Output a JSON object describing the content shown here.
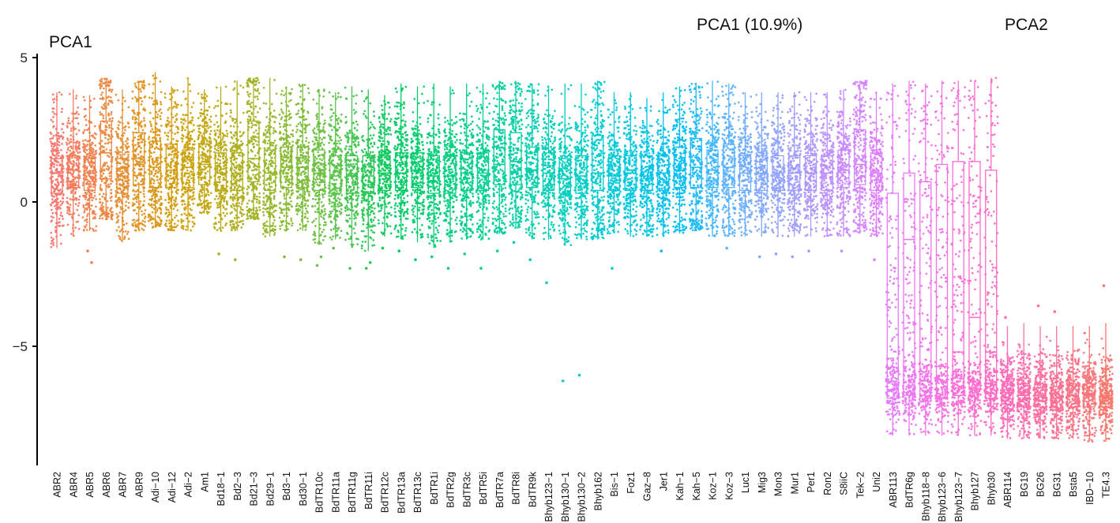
{
  "chart_data": {
    "type": "box",
    "title": "PCA1 (10.9%)",
    "ylabel": "PCA1",
    "secondary_label": "PCA2",
    "ylim": [
      -8.8,
      5.2
    ],
    "yticks": [
      5,
      0,
      -5
    ],
    "ytick_labels": [
      "5",
      "0",
      "−5"
    ],
    "grid": false,
    "legend": "none",
    "categories": [
      "ABR2",
      "ABR4",
      "ABR5",
      "ABR6",
      "ABR7",
      "ABR9",
      "Adi−10",
      "Adi−12",
      "Adi−2",
      "Am1",
      "Bd18−1",
      "Bd2−3",
      "Bd21−3",
      "Bd29−1",
      "Bd3−1",
      "Bd30−1",
      "BdTR10c",
      "BdTR11a",
      "BdTR11g",
      "BdTR11i",
      "BdTR12c",
      "BdTR13a",
      "BdTR13c",
      "BdTR1i",
      "BdTR2g",
      "BdTR3c",
      "BdTR5i",
      "BdTR7a",
      "BdTR8i",
      "BdTR9k",
      "Bhyb123−1",
      "Bhyb130−1",
      "Bhyb130−2",
      "Bhyb162",
      "Bis−1",
      "Foz1",
      "Gaz−8",
      "Jer1",
      "Kah−1",
      "Kah−5",
      "Koz−1",
      "Koz−3",
      "Luc1",
      "Mig3",
      "Mon3",
      "Mur1",
      "Per1",
      "Ron2",
      "S8iiC",
      "Tek−2",
      "Uni2",
      "ABR113",
      "BdTR6g",
      "Bhyb118−8",
      "Bhyb123−6",
      "Bhyb123−7",
      "Bhyb127",
      "Bhyb30",
      "ABR114",
      "BG19",
      "BG26",
      "BG31",
      "Bsta5",
      "IBD−10",
      "TE4.3"
    ],
    "colors": [
      "#F8766D",
      "#F47C5E",
      "#F08250",
      "#EB8841",
      "#E68E33",
      "#E09325",
      "#DA9818",
      "#D39D0E",
      "#CBA20B",
      "#C2A60E",
      "#B9AB15",
      "#AFAF1D",
      "#A4B325",
      "#98B72D",
      "#8BBA34",
      "#7DBD3B",
      "#6DC042",
      "#5BC349",
      "#44C550",
      "#28C757",
      "#0DC95E",
      "#00CA66",
      "#00CC6E",
      "#00CD77",
      "#00CE80",
      "#00CE89",
      "#00CF92",
      "#00CF9B",
      "#00CFA4",
      "#00CFAD",
      "#00CEB6",
      "#00CDBF",
      "#00CCC7",
      "#00CBCF",
      "#00C9D7",
      "#00C7DE",
      "#00C4E6",
      "#00C1EC",
      "#00BEF2",
      "#1FBAF8",
      "#42B6FD",
      "#5BB2FF",
      "#70ADFF",
      "#82A8FF",
      "#92A3FF",
      "#A19DFF",
      "#AF97FF",
      "#BC91FF",
      "#C88AFF",
      "#D384FF",
      "#DD7EFF",
      "#E57AFA",
      "#EC76F3",
      "#F272EB",
      "#F670E2",
      "#FA6ED8",
      "#FC6DCE",
      "#FE6CC3",
      "#FE6CB8",
      "#FE6DAC",
      "#FE6EA0",
      "#FC7094",
      "#FA7387",
      "#F9767B",
      "#F8766D"
    ],
    "series": [
      {
        "name": "median",
        "values": [
          1.0,
          1.1,
          1.0,
          1.7,
          0.9,
          1.3,
          1.2,
          1.1,
          1.2,
          1.3,
          1.0,
          1.0,
          1.5,
          1.0,
          1.2,
          1.2,
          1.0,
          0.9,
          0.9,
          0.9,
          1.0,
          1.0,
          1.1,
          0.9,
          0.9,
          1.0,
          1.0,
          1.3,
          1.4,
          1.1,
          1.0,
          0.8,
          0.9,
          1.0,
          0.9,
          1.0,
          0.9,
          1.0,
          1.1,
          1.2,
          1.1,
          1.2,
          1.0,
          1.0,
          1.0,
          1.0,
          1.0,
          1.0,
          1.1,
          1.3,
          1.0,
          -6.5,
          -1.3,
          -6.2,
          -5.7,
          -5.2,
          -4.0,
          -5.2,
          -6.6,
          -6.7,
          -6.7,
          -6.8,
          -6.7,
          -6.7,
          -6.7
        ]
      },
      {
        "name": "q1",
        "values": [
          0.3,
          0.5,
          0.4,
          0.8,
          0.3,
          0.6,
          0.5,
          0.5,
          0.5,
          0.6,
          0.4,
          0.4,
          0.7,
          0.4,
          0.5,
          0.5,
          0.4,
          0.3,
          0.3,
          0.3,
          0.4,
          0.4,
          0.5,
          0.3,
          0.3,
          0.4,
          0.4,
          0.6,
          0.6,
          0.5,
          0.4,
          0.3,
          0.3,
          0.4,
          0.4,
          0.4,
          0.4,
          0.4,
          0.5,
          0.5,
          0.5,
          0.5,
          0.4,
          0.4,
          0.4,
          0.4,
          0.4,
          0.4,
          0.5,
          0.6,
          0.4,
          -6.8,
          -6.7,
          -6.9,
          -6.8,
          -6.7,
          -6.5,
          -6.8,
          -7.0,
          -7.1,
          -7.1,
          -7.2,
          -7.1,
          -7.1,
          -7.1
        ]
      },
      {
        "name": "q3",
        "values": [
          1.5,
          1.6,
          1.5,
          2.8,
          1.5,
          2.4,
          2.1,
          2.0,
          1.8,
          2.0,
          1.7,
          1.7,
          2.8,
          1.8,
          1.9,
          1.9,
          1.8,
          1.6,
          1.6,
          1.6,
          1.6,
          1.7,
          1.7,
          1.6,
          1.6,
          1.7,
          1.7,
          2.5,
          2.4,
          1.9,
          1.7,
          1.5,
          1.6,
          2.3,
          1.6,
          1.6,
          1.6,
          1.6,
          1.9,
          2.2,
          1.8,
          2.0,
          1.6,
          1.6,
          1.6,
          1.6,
          1.6,
          1.6,
          1.8,
          2.5,
          1.7,
          0.3,
          1.0,
          0.7,
          1.3,
          1.4,
          1.4,
          1.1,
          -6.3,
          -6.3,
          -6.3,
          -6.4,
          -6.3,
          -6.3,
          -6.3
        ]
      },
      {
        "name": "whisker_low",
        "values": [
          -1.6,
          -1.2,
          -1.0,
          -0.6,
          -1.4,
          -1.0,
          -0.9,
          -1.0,
          -1.0,
          -0.4,
          -1.0,
          -1.0,
          -0.6,
          -1.2,
          -1.0,
          -1.0,
          -1.5,
          -1.3,
          -1.6,
          -1.7,
          -1.2,
          -1.3,
          -1.4,
          -1.6,
          -1.4,
          -1.3,
          -1.3,
          -1.1,
          -0.9,
          -1.3,
          -1.3,
          -1.5,
          -1.3,
          -1.3,
          -1.1,
          -1.2,
          -1.2,
          -1.2,
          -1.1,
          -1.0,
          -1.2,
          -1.2,
          -1.2,
          -1.2,
          -1.2,
          -1.2,
          -1.2,
          -1.2,
          -1.2,
          -1.1,
          -1.2,
          -8.1,
          -8.1,
          -8.1,
          -8.1,
          -8.1,
          -8.1,
          -8.1,
          -8.2,
          -8.2,
          -8.2,
          -8.2,
          -8.2,
          -8.3,
          -8.3
        ]
      },
      {
        "name": "whisker_high",
        "values": [
          3.8,
          3.9,
          3.7,
          4.3,
          3.9,
          4.2,
          4.5,
          4.0,
          4.3,
          3.9,
          4.0,
          4.2,
          4.3,
          4.3,
          4.0,
          4.1,
          3.9,
          3.8,
          4.0,
          3.9,
          3.7,
          4.1,
          4.0,
          4.1,
          4.0,
          4.1,
          4.1,
          4.2,
          4.2,
          4.1,
          4.0,
          4.1,
          4.1,
          4.2,
          3.8,
          3.8,
          3.6,
          3.8,
          4.0,
          4.1,
          4.2,
          4.1,
          3.8,
          3.8,
          3.8,
          3.8,
          3.8,
          3.8,
          3.9,
          4.2,
          3.8,
          4.1,
          4.2,
          4.1,
          4.2,
          4.2,
          4.2,
          4.3,
          -4.3,
          -4.2,
          -4.3,
          -4.3,
          -4.3,
          -4.3,
          -4.2
        ]
      },
      {
        "name": "outliers",
        "values": [
          [],
          [],
          [
            -1.7,
            -2.1
          ],
          [],
          [],
          [],
          [],
          [],
          [],
          [],
          [
            -1.8
          ],
          [
            -2.0
          ],
          [],
          [],
          [
            -1.9
          ],
          [
            -2.0
          ],
          [
            -2.2,
            -1.9
          ],
          [
            -1.6
          ],
          [
            -2.3
          ],
          [
            -2.3,
            -2.1
          ],
          [
            -1.6
          ],
          [
            -1.7
          ],
          [
            -2.0
          ],
          [
            -1.9
          ],
          [
            -2.3
          ],
          [
            -1.8
          ],
          [
            -2.3
          ],
          [
            -1.7
          ],
          [
            -1.4
          ],
          [
            -2.0
          ],
          [
            -2.8
          ],
          [
            -6.2
          ],
          [
            -6.0
          ],
          [],
          [
            -2.3
          ],
          [],
          [],
          [
            -1.7
          ],
          [],
          [],
          [],
          [
            -1.6
          ],
          [],
          [
            -1.9
          ],
          [
            -1.8
          ],
          [
            -1.9
          ],
          [
            -1.7
          ],
          [],
          [
            -1.7
          ],
          [],
          [
            -2.0
          ],
          [],
          [],
          [],
          [],
          [],
          [],
          [],
          [
            -4.0
          ],
          [],
          [
            -3.6
          ],
          [
            -3.8
          ],
          [],
          [],
          [
            -2.9
          ]
        ]
      }
    ]
  },
  "annotations": {
    "ylabel": "PCA1",
    "title": "PCA1 (10.9%)",
    "pca2": "PCA2"
  }
}
